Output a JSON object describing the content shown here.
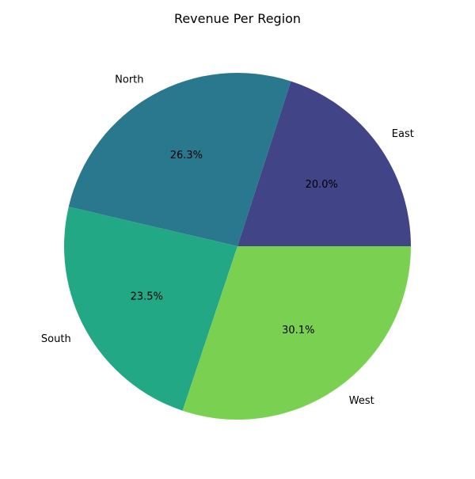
{
  "chart_data": {
    "type": "pie",
    "title": "Revenue Per Region",
    "start_angle_deg": 0,
    "direction": "counterclockwise",
    "slices": [
      {
        "label": "East",
        "value": 20.0,
        "pct_label": "20.0%",
        "color": "#414487"
      },
      {
        "label": "North",
        "value": 26.3,
        "pct_label": "26.3%",
        "color": "#2a788e"
      },
      {
        "label": "South",
        "value": 23.5,
        "pct_label": "23.5%",
        "color": "#22a884"
      },
      {
        "label": "West",
        "value": 30.1,
        "pct_label": "30.1%",
        "color": "#7ad151"
      }
    ]
  }
}
